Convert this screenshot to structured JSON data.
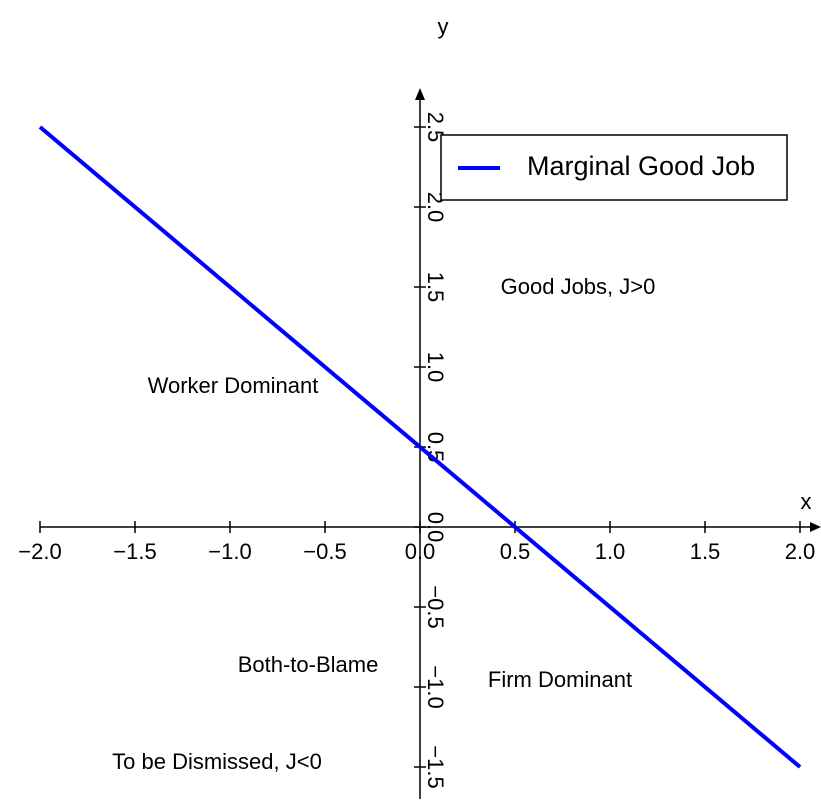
{
  "chart_data": {
    "type": "line",
    "x_label": "x",
    "y_label": "y",
    "x": [
      -2,
      2
    ],
    "series": [
      {
        "name": "Marginal Good Job",
        "color": "#0000ff",
        "values": [
          2.5,
          -1.5
        ]
      }
    ],
    "xlim": [
      -2,
      2
    ],
    "ylim": [
      -1.7,
      2.7
    ],
    "xticks": [
      {
        "value": -2,
        "label": "−2.0"
      },
      {
        "value": -1.5,
        "label": "−1.5"
      },
      {
        "value": -1,
        "label": "−1.0"
      },
      {
        "value": -0.5,
        "label": "−0.5"
      },
      {
        "value": 0,
        "label": "0.0"
      },
      {
        "value": 0.5,
        "label": "0.5"
      },
      {
        "value": 1,
        "label": "1.0"
      },
      {
        "value": 1.5,
        "label": "1.5"
      },
      {
        "value": 2,
        "label": "2.0"
      }
    ],
    "yticks": [
      {
        "value": -1.5,
        "label": "−1.5"
      },
      {
        "value": -1,
        "label": "−1.0"
      },
      {
        "value": -0.5,
        "label": "−0.5"
      },
      {
        "value": 0,
        "label": "0.0"
      },
      {
        "value": 0.5,
        "label": "0.5"
      },
      {
        "value": 1,
        "label": "1.0"
      },
      {
        "value": 1.5,
        "label": "1.5"
      },
      {
        "value": 2,
        "label": "2.0"
      },
      {
        "value": 2.5,
        "label": "2.5"
      }
    ],
    "annotations": [
      "Good Jobs, J>0",
      "Worker Dominant",
      "Both-to-Blame",
      "Firm Dominant",
      "To be Dismissed, J<0"
    ],
    "legend": "upper right"
  }
}
